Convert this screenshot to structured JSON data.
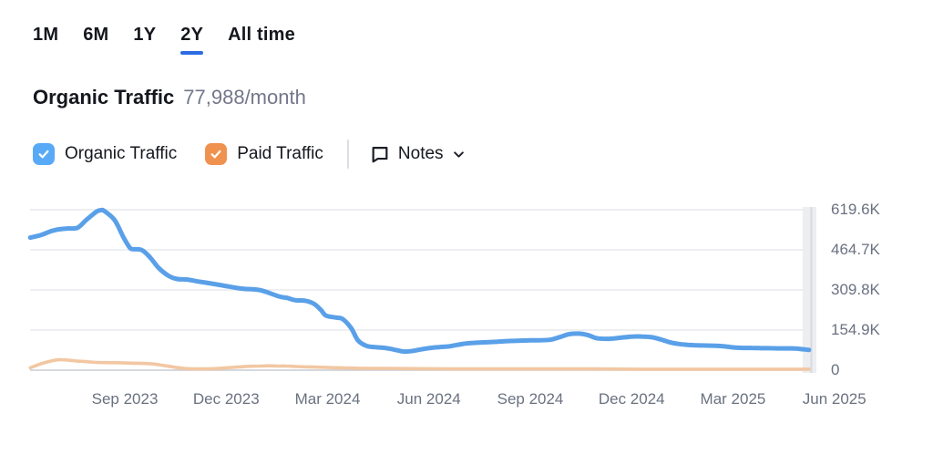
{
  "tabs": {
    "items": [
      {
        "label": "1M"
      },
      {
        "label": "6M"
      },
      {
        "label": "1Y"
      },
      {
        "label": "2Y"
      },
      {
        "label": "All time"
      }
    ],
    "active": "2Y"
  },
  "header": {
    "title": "Organic Traffic",
    "value": "77,988/month"
  },
  "legend": {
    "organic": {
      "label": "Organic Traffic",
      "checked": true
    },
    "paid": {
      "label": "Paid Traffic",
      "checked": true
    },
    "notes_label": "Notes"
  },
  "colors": {
    "accent_underline": "#2b6ce2",
    "check_blue": "#58aaf6",
    "check_orange": "#f0924f",
    "organic_line": "#5aa0e8",
    "paid_line": "#f2c7a2",
    "text": "#15171e",
    "muted": "#72778a",
    "axis": "#6a7180",
    "grid": "#e8eaed",
    "zero_line": "#c8ccd2",
    "band": "#eceef1",
    "band_edge": "#d7dade",
    "divider": "#dcdee3"
  },
  "chart_data": {
    "type": "line",
    "title": "Organic Traffic",
    "values_unit": "visits per month (thousands)",
    "x_unit": "months since 2023-06-01",
    "grid": "horizontal",
    "legend_position": "top",
    "ylim_k": [
      0,
      619.6
    ],
    "y_ticks": [
      {
        "label": "619.6K",
        "value_k": 619.6
      },
      {
        "label": "464.7K",
        "value_k": 464.7
      },
      {
        "label": "309.8K",
        "value_k": 309.8
      },
      {
        "label": "154.9K",
        "value_k": 154.9
      },
      {
        "label": "0",
        "value_k": 0
      }
    ],
    "x_ticks": [
      {
        "label": "Sep 2023",
        "m": 3
      },
      {
        "label": "Dec 2023",
        "m": 6
      },
      {
        "label": "Mar 2024",
        "m": 9
      },
      {
        "label": "Jun 2024",
        "m": 12
      },
      {
        "label": "Sep 2024",
        "m": 15
      },
      {
        "label": "Dec 2024",
        "m": 18
      },
      {
        "label": "Mar 2025",
        "m": 21
      },
      {
        "label": "Jun 2025",
        "m": 24
      }
    ],
    "series": [
      {
        "name": "Paid Traffic",
        "color": "#f2c7a2",
        "points": [
          [
            0.2,
            9
          ],
          [
            0.5,
            24
          ],
          [
            0.8,
            35
          ],
          [
            1.05,
            40
          ],
          [
            1.3,
            39
          ],
          [
            1.6,
            35
          ],
          [
            1.85,
            33
          ],
          [
            2.15,
            30
          ],
          [
            2.7,
            29
          ],
          [
            3.2,
            27
          ],
          [
            3.75,
            25
          ],
          [
            4.0,
            21
          ],
          [
            4.3,
            15
          ],
          [
            4.55,
            10
          ],
          [
            4.85,
            6
          ],
          [
            5.1,
            5
          ],
          [
            5.4,
            5
          ],
          [
            5.65,
            6
          ],
          [
            5.9,
            8
          ],
          [
            6.2,
            11
          ],
          [
            6.45,
            13
          ],
          [
            6.7,
            15
          ],
          [
            7.0,
            16
          ],
          [
            7.25,
            17
          ],
          [
            7.55,
            16
          ],
          [
            7.8,
            16
          ],
          [
            8.05,
            14
          ],
          [
            8.6,
            12
          ],
          [
            9.15,
            10
          ],
          [
            9.7,
            8
          ],
          [
            10.25,
            7
          ],
          [
            10.75,
            7
          ],
          [
            11.6,
            6
          ],
          [
            12.8,
            5
          ],
          [
            14.1,
            5
          ],
          [
            15.5,
            5
          ],
          [
            16.85,
            5
          ],
          [
            18.2,
            4
          ],
          [
            19.5,
            4
          ],
          [
            20.9,
            4
          ],
          [
            22.2,
            4
          ],
          [
            23.25,
            4
          ]
        ]
      },
      {
        "name": "Organic Traffic",
        "color": "#5aa0e8",
        "points": [
          [
            0.2,
            512
          ],
          [
            0.5,
            521
          ],
          [
            0.8,
            536
          ],
          [
            1.05,
            544
          ],
          [
            1.3,
            547
          ],
          [
            1.6,
            550
          ],
          [
            1.85,
            579
          ],
          [
            2.15,
            611
          ],
          [
            2.3,
            618
          ],
          [
            2.4,
            614
          ],
          [
            2.7,
            579
          ],
          [
            2.95,
            515
          ],
          [
            3.1,
            482
          ],
          [
            3.2,
            468
          ],
          [
            3.5,
            464
          ],
          [
            3.75,
            435
          ],
          [
            4.0,
            395
          ],
          [
            4.3,
            364
          ],
          [
            4.55,
            352
          ],
          [
            4.85,
            350
          ],
          [
            5.1,
            344
          ],
          [
            5.4,
            338
          ],
          [
            5.9,
            327
          ],
          [
            6.45,
            315
          ],
          [
            7.0,
            309
          ],
          [
            7.55,
            285
          ],
          [
            7.8,
            279
          ],
          [
            8.05,
            270
          ],
          [
            8.35,
            268
          ],
          [
            8.6,
            256
          ],
          [
            8.8,
            233
          ],
          [
            8.95,
            211
          ],
          [
            9.25,
            203
          ],
          [
            9.45,
            197
          ],
          [
            9.7,
            162
          ],
          [
            9.9,
            115
          ],
          [
            10.15,
            94
          ],
          [
            10.4,
            89
          ],
          [
            10.7,
            86
          ],
          [
            10.95,
            80
          ],
          [
            11.25,
            72
          ],
          [
            11.5,
            74
          ],
          [
            11.75,
            80
          ],
          [
            12.05,
            86
          ],
          [
            12.3,
            89
          ],
          [
            12.6,
            92
          ],
          [
            12.85,
            98
          ],
          [
            13.1,
            103
          ],
          [
            13.4,
            106
          ],
          [
            13.9,
            109
          ],
          [
            14.45,
            113
          ],
          [
            15.0,
            115
          ],
          [
            15.55,
            117
          ],
          [
            15.9,
            129
          ],
          [
            16.15,
            139
          ],
          [
            16.45,
            141
          ],
          [
            16.7,
            136
          ],
          [
            16.95,
            124
          ],
          [
            17.25,
            121
          ],
          [
            17.5,
            123
          ],
          [
            17.8,
            127
          ],
          [
            18.05,
            130
          ],
          [
            18.3,
            130
          ],
          [
            18.6,
            127
          ],
          [
            18.85,
            119
          ],
          [
            19.15,
            107
          ],
          [
            19.4,
            101
          ],
          [
            19.65,
            98
          ],
          [
            19.95,
            96
          ],
          [
            20.2,
            95
          ],
          [
            20.5,
            94
          ],
          [
            20.75,
            92
          ],
          [
            21.0,
            88
          ],
          [
            21.3,
            86
          ],
          [
            21.55,
            86
          ],
          [
            21.85,
            85
          ],
          [
            22.1,
            85
          ],
          [
            22.35,
            84
          ],
          [
            22.65,
            84
          ],
          [
            22.9,
            83
          ],
          [
            23.25,
            78
          ]
        ]
      }
    ]
  }
}
